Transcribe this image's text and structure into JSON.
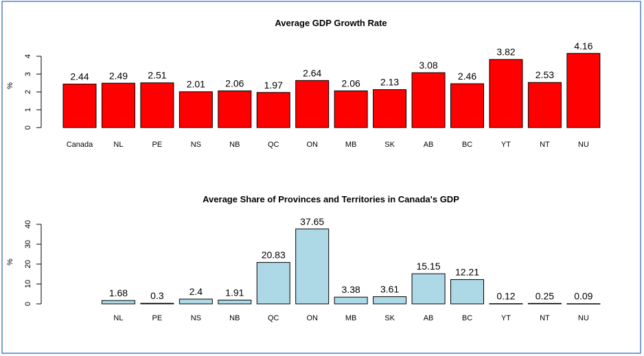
{
  "colors": {
    "frame": "#4f81bd",
    "chart1_bar": "#ff0000",
    "chart2_bar": "#add8e6"
  },
  "chart_data": [
    {
      "type": "bar",
      "title": "Average GDP Growth Rate",
      "ylabel": "%",
      "xlabel": "",
      "ylim": [
        0,
        4
      ],
      "yticks": [
        0,
        1,
        2,
        3,
        4
      ],
      "grid": false,
      "categories": [
        "Canada",
        "NL",
        "PE",
        "NS",
        "NB",
        "QC",
        "ON",
        "MB",
        "SK",
        "AB",
        "BC",
        "YT",
        "NT",
        "NU"
      ],
      "values": [
        2.44,
        2.49,
        2.51,
        2.01,
        2.06,
        1.97,
        2.64,
        2.06,
        2.13,
        3.08,
        2.46,
        3.82,
        2.53,
        4.16
      ],
      "data_labels": [
        "2.44",
        "2.49",
        "2.51",
        "2.01",
        "2.06",
        "1.97",
        "2.64",
        "2.06",
        "2.13",
        "3.08",
        "2.46",
        "3.82",
        "2.53",
        "4.16"
      ]
    },
    {
      "type": "bar",
      "title": "Average Share of Provinces and Territories in Canada's GDP",
      "ylabel": "%",
      "xlabel": "",
      "ylim": [
        0,
        40
      ],
      "yticks": [
        0,
        10,
        20,
        30,
        40
      ],
      "grid": false,
      "categories": [
        "NL",
        "PE",
        "NS",
        "NB",
        "QC",
        "ON",
        "MB",
        "SK",
        "AB",
        "BC",
        "YT",
        "NT",
        "NU"
      ],
      "values": [
        1.68,
        0.3,
        2.4,
        1.91,
        20.83,
        37.65,
        3.38,
        3.61,
        15.15,
        12.21,
        0.12,
        0.25,
        0.09
      ],
      "data_labels": [
        "1.68",
        "0.3",
        "2.4",
        "1.91",
        "20.83",
        "37.65",
        "3.38",
        "3.61",
        "15.15",
        "12.21",
        "0.12",
        "0.25",
        "0.09"
      ]
    }
  ]
}
